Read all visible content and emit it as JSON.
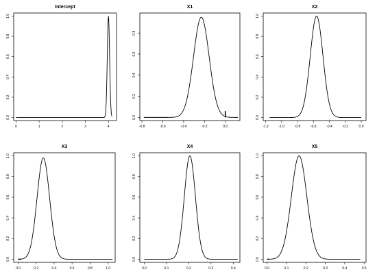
{
  "chart_data": [
    {
      "type": "line",
      "title": "Intercept",
      "xlim": [
        -0.1,
        4.35
      ],
      "ylim": [
        -0.03,
        1.03
      ],
      "x_ticks": [
        "0",
        "1",
        "2",
        "3",
        "4"
      ],
      "y_ticks": [
        "0.0",
        "0.2",
        "0.4",
        "0.6",
        "0.8",
        "1.0"
      ],
      "curve": {
        "shape": "gaussian",
        "peak_x": 4.0,
        "sd": 0.05,
        "peak_y": 1.0,
        "x_range": [
          0.0,
          4.15
        ]
      },
      "markers": []
    },
    {
      "type": "line",
      "title": "X1",
      "xlim": [
        -0.82,
        0.14
      ],
      "ylim": [
        -0.03,
        0.99
      ],
      "x_ticks": [
        "-0.8",
        "-0.6",
        "-0.4",
        "-0.2",
        "0.0"
      ],
      "y_ticks": [
        "0.0",
        "0.2",
        "0.4",
        "0.6",
        "0.8"
      ],
      "curve": {
        "shape": "gaussian",
        "peak_x": -0.23,
        "sd": 0.075,
        "peak_y": 0.95,
        "x_range": [
          -0.78,
          0.12
        ]
      },
      "markers": [
        {
          "x": 0.0,
          "y0": 0.0,
          "y1": 0.06,
          "orient": "vertical"
        }
      ]
    },
    {
      "type": "line",
      "title": "X2",
      "xlim": [
        -1.23,
        0.06
      ],
      "ylim": [
        -0.03,
        1.03
      ],
      "x_ticks": [
        "-1.2",
        "-1.0",
        "-0.8",
        "-0.6",
        "-0.4",
        "-0.2",
        "0.0"
      ],
      "y_ticks": [
        "0.0",
        "0.2",
        "0.4",
        "0.6",
        "0.8",
        "1.0"
      ],
      "curve": {
        "shape": "gaussian",
        "peak_x": -0.56,
        "sd": 0.08,
        "peak_y": 1.0,
        "x_range": [
          -1.15,
          0.0
        ]
      },
      "markers": []
    },
    {
      "type": "line",
      "title": "X3",
      "xlim": [
        -0.05,
        1.08
      ],
      "ylim": [
        -0.03,
        1.03
      ],
      "x_ticks": [
        "0.0",
        "0.2",
        "0.4",
        "0.6",
        "0.8",
        "1.0"
      ],
      "y_ticks": [
        "0.0",
        "0.2",
        "0.4",
        "0.6",
        "0.8",
        "1.0"
      ],
      "curve": {
        "shape": "gaussian",
        "peak_x": 0.28,
        "sd": 0.07,
        "peak_y": 0.98,
        "x_range": [
          0.0,
          1.05
        ]
      },
      "markers": [
        {
          "x0": 0.0,
          "x1": 0.03,
          "y": 0.0,
          "orient": "horizontal"
        }
      ]
    },
    {
      "type": "line",
      "title": "X4",
      "xlim": [
        -0.02,
        0.43
      ],
      "ylim": [
        -0.03,
        1.03
      ],
      "x_ticks": [
        "0.0",
        "0.1",
        "0.2",
        "0.3",
        "0.4"
      ],
      "y_ticks": [
        "0.0",
        "0.2",
        "0.4",
        "0.6",
        "0.8",
        "1.0"
      ],
      "curve": {
        "shape": "gaussian",
        "peak_x": 0.205,
        "sd": 0.025,
        "peak_y": 1.0,
        "x_range": [
          0.0,
          0.42
        ]
      },
      "markers": []
    },
    {
      "type": "line",
      "title": "X5",
      "xlim": [
        -0.02,
        0.51
      ],
      "ylim": [
        -0.03,
        1.03
      ],
      "x_ticks": [
        "0.0",
        "0.1",
        "0.2",
        "0.3",
        "0.4",
        "0.5"
      ],
      "y_ticks": [
        "0.0",
        "0.2",
        "0.4",
        "0.6",
        "0.8",
        "1.0"
      ],
      "curve": {
        "shape": "gaussian",
        "peak_x": 0.165,
        "sd": 0.04,
        "peak_y": 1.0,
        "x_range": [
          0.0,
          0.48
        ]
      },
      "markers": [
        {
          "x0": 0.0,
          "x1": 0.01,
          "y": 0.0,
          "orient": "horizontal"
        }
      ]
    }
  ]
}
